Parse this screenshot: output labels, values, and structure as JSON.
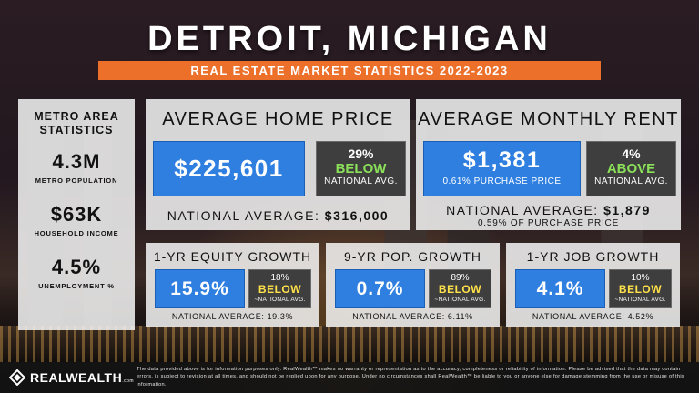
{
  "title": "DETROIT, MICHIGAN",
  "subtitle": "REAL ESTATE MARKET STATISTICS 2022-2023",
  "metro": {
    "heading_line1": "METRO AREA",
    "heading_line2": "STATISTICS",
    "population_value": "4.3M",
    "population_label": "METRO POPULATION",
    "income_value": "$63K",
    "income_label": "HOUSEHOLD INCOME",
    "unemployment_value": "4.5%",
    "unemployment_label": "UNEMPLOYMENT %"
  },
  "home_price": {
    "heading": "AVERAGE HOME PRICE",
    "value": "$225,601",
    "compare_pct": "29%",
    "compare_dir": "BELOW",
    "compare_label": "NATIONAL AVG.",
    "national_label": "NATIONAL AVERAGE:",
    "national_value": "$316,000"
  },
  "rent": {
    "heading": "AVERAGE MONTHLY RENT",
    "value": "$1,381",
    "sub": "0.61% PURCHASE PRICE",
    "compare_pct": "4%",
    "compare_dir": "ABOVE",
    "compare_label": "NATIONAL AVG.",
    "national_label": "NATIONAL AVERAGE:",
    "national_value": "$1,879",
    "national_sub": "0.59% OF PURCHASE PRICE"
  },
  "equity": {
    "heading": "1-YR EQUITY GROWTH",
    "value": "15.9%",
    "compare_pct": "18%",
    "compare_dir": "BELOW",
    "compare_label": "~NATIONAL AVG.",
    "national": "NATIONAL AVERAGE: 19.3%"
  },
  "population": {
    "heading": "9-YR POP. GROWTH",
    "value": "0.7%",
    "compare_pct": "89%",
    "compare_dir": "BELOW",
    "compare_label": "~NATIONAL AVG.",
    "national": "NATIONAL AVERAGE: 6.11%"
  },
  "jobs": {
    "heading": "1-YR JOB GROWTH",
    "value": "4.1%",
    "compare_pct": "10%",
    "compare_dir": "BELOW",
    "compare_label": "~NATIONAL AVG.",
    "national": "NATIONAL AVERAGE: 4.52%"
  },
  "footer": {
    "logo_text": "REALWEALTH",
    "logo_suffix": ".com",
    "disclaimer": "The data provided above is for information purposes only. RealWealth™ makes no warranty or representation as to the accuracy, completeness or reliability of information. Please be advised that the data may contain errors, is subject to revision at all times, and should not be replied upon for any purpose. Under no circumstances shall RealWealth™ be liable to you or anyone else for damage stemming from the use or misuse of this information."
  },
  "colors": {
    "accent_orange": "#ec6f2a",
    "value_blue": "#2f7fe0",
    "below_yellow": "#ffe14a",
    "above_green": "#8be05a"
  },
  "icons": [
    "realwealth-logo-icon"
  ]
}
